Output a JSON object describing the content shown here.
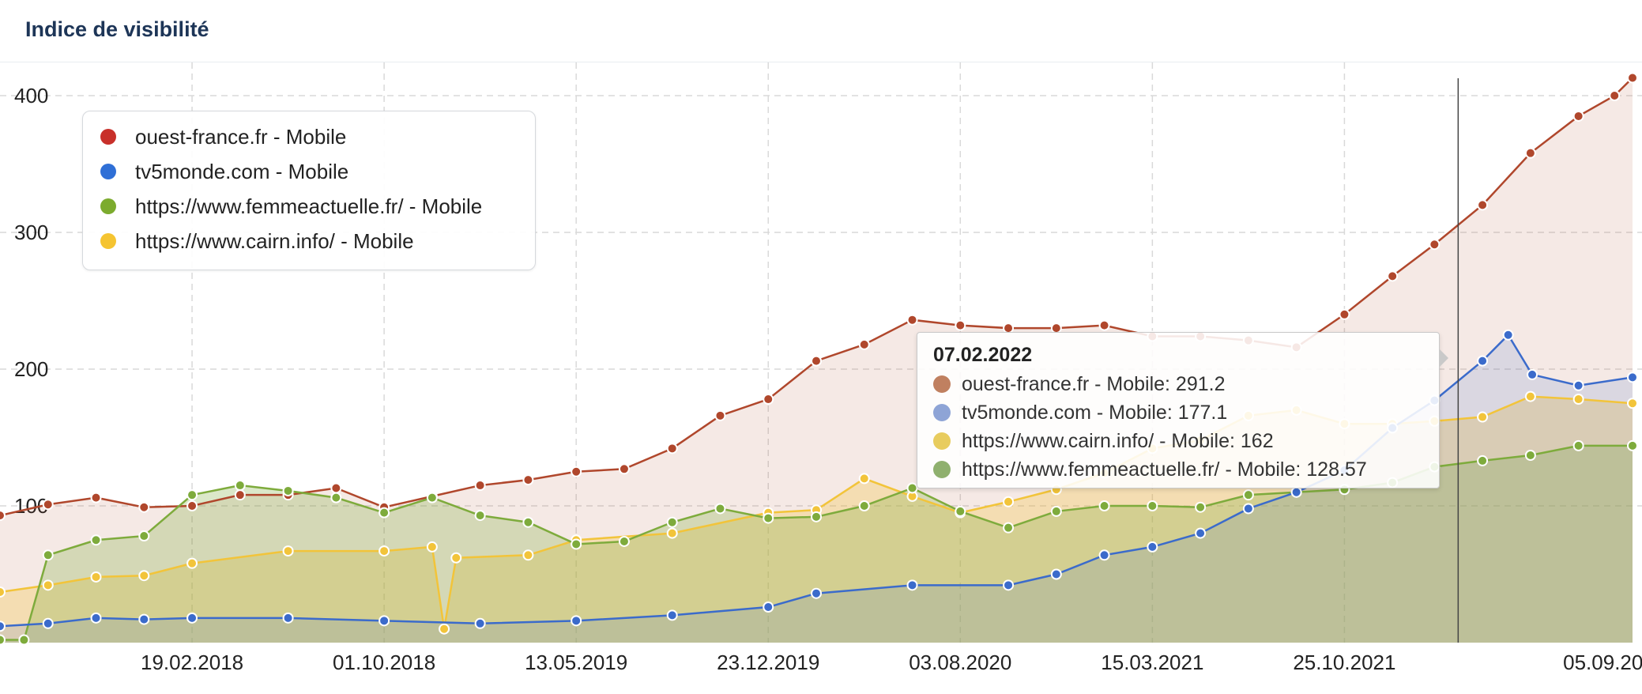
{
  "header": {
    "title": "Indice de visibilité"
  },
  "chart_data": {
    "type": "area",
    "ylim": [
      0,
      415
    ],
    "y_ticks": [
      100,
      200,
      300,
      400
    ],
    "x_tick_labels": [
      "19.02.2018",
      "01.10.2018",
      "13.05.2019",
      "23.12.2019",
      "03.08.2020",
      "15.03.2021",
      "25.10.2021",
      "05.09.2022"
    ],
    "x_start": "2017-07-10",
    "x_end": "2022-09-26",
    "grid": true,
    "legend_position": "top-left",
    "series": [
      {
        "name": "ouest-france.fr - Mobile",
        "color": "#b0472c",
        "values": [
          [
            "2017-07-10",
            93
          ],
          [
            "2017-09-04",
            101
          ],
          [
            "2017-10-30",
            106
          ],
          [
            "2017-12-25",
            99
          ],
          [
            "2018-02-19",
            100
          ],
          [
            "2018-04-16",
            108
          ],
          [
            "2018-06-11",
            108
          ],
          [
            "2018-08-06",
            113
          ],
          [
            "2018-10-01",
            99
          ],
          [
            "2018-11-26",
            107
          ],
          [
            "2019-01-21",
            115
          ],
          [
            "2019-03-18",
            119
          ],
          [
            "2019-05-13",
            125
          ],
          [
            "2019-07-08",
            127
          ],
          [
            "2019-09-02",
            142
          ],
          [
            "2019-10-28",
            166
          ],
          [
            "2019-12-23",
            178
          ],
          [
            "2020-02-17",
            206
          ],
          [
            "2020-04-13",
            218
          ],
          [
            "2020-06-08",
            236
          ],
          [
            "2020-08-03",
            232
          ],
          [
            "2020-09-28",
            230
          ],
          [
            "2020-11-23",
            230
          ],
          [
            "2021-01-18",
            232
          ],
          [
            "2021-03-15",
            224
          ],
          [
            "2021-05-10",
            224
          ],
          [
            "2021-07-05",
            221
          ],
          [
            "2021-08-30",
            216
          ],
          [
            "2021-10-25",
            240
          ],
          [
            "2021-12-20",
            268
          ],
          [
            "2022-02-07",
            291.2
          ],
          [
            "2022-04-04",
            320
          ],
          [
            "2022-05-30",
            358
          ],
          [
            "2022-07-25",
            385
          ],
          [
            "2022-09-05",
            400
          ],
          [
            "2022-09-26",
            413
          ]
        ]
      },
      {
        "name": "tv5monde.com - Mobile",
        "color": "#3b6bcb",
        "values": [
          [
            "2017-07-10",
            12
          ],
          [
            "2017-09-04",
            14
          ],
          [
            "2017-10-30",
            18
          ],
          [
            "2017-12-25",
            17
          ],
          [
            "2018-02-19",
            18
          ],
          [
            "2018-06-11",
            18
          ],
          [
            "2018-10-01",
            16
          ],
          [
            "2019-01-21",
            14
          ],
          [
            "2019-05-13",
            16
          ],
          [
            "2019-09-02",
            20
          ],
          [
            "2019-12-23",
            26
          ],
          [
            "2020-02-17",
            36
          ],
          [
            "2020-06-08",
            42
          ],
          [
            "2020-09-28",
            42
          ],
          [
            "2020-11-23",
            50
          ],
          [
            "2021-01-18",
            64
          ],
          [
            "2021-03-15",
            70
          ],
          [
            "2021-05-10",
            80
          ],
          [
            "2021-07-05",
            98
          ],
          [
            "2021-08-30",
            110
          ],
          [
            "2021-10-25",
            126
          ],
          [
            "2021-12-20",
            157
          ],
          [
            "2022-02-07",
            177.1
          ],
          [
            "2022-04-04",
            206
          ],
          [
            "2022-05-04",
            225
          ],
          [
            "2022-06-01",
            196
          ],
          [
            "2022-07-25",
            188
          ],
          [
            "2022-09-26",
            194
          ]
        ]
      },
      {
        "name": "https://www.femmeactuelle.fr/ - Mobile",
        "color": "#7eab3c",
        "values": [
          [
            "2017-07-10",
            2
          ],
          [
            "2017-08-07",
            2
          ],
          [
            "2017-09-04",
            64
          ],
          [
            "2017-10-30",
            75
          ],
          [
            "2017-12-25",
            78
          ],
          [
            "2018-02-19",
            108
          ],
          [
            "2018-04-16",
            115
          ],
          [
            "2018-06-11",
            111
          ],
          [
            "2018-08-06",
            106
          ],
          [
            "2018-10-01",
            95
          ],
          [
            "2018-11-26",
            106
          ],
          [
            "2019-01-21",
            93
          ],
          [
            "2019-03-18",
            88
          ],
          [
            "2019-05-13",
            72
          ],
          [
            "2019-07-08",
            74
          ],
          [
            "2019-09-02",
            88
          ],
          [
            "2019-10-28",
            98
          ],
          [
            "2019-12-23",
            91
          ],
          [
            "2020-02-17",
            92
          ],
          [
            "2020-04-13",
            100
          ],
          [
            "2020-06-08",
            113
          ],
          [
            "2020-08-03",
            96
          ],
          [
            "2020-09-28",
            84
          ],
          [
            "2020-11-23",
            96
          ],
          [
            "2021-01-18",
            100
          ],
          [
            "2021-03-15",
            100
          ],
          [
            "2021-05-10",
            99
          ],
          [
            "2021-07-05",
            108
          ],
          [
            "2021-08-30",
            110
          ],
          [
            "2021-10-25",
            112
          ],
          [
            "2021-12-20",
            117
          ],
          [
            "2022-02-07",
            128.57
          ],
          [
            "2022-04-04",
            133
          ],
          [
            "2022-05-30",
            137
          ],
          [
            "2022-07-25",
            144
          ],
          [
            "2022-09-26",
            144
          ]
        ]
      },
      {
        "name": "https://www.cairn.info/ - Mobile",
        "color": "#f2c43a",
        "values": [
          [
            "2017-07-10",
            37
          ],
          [
            "2017-09-04",
            42
          ],
          [
            "2017-10-30",
            48
          ],
          [
            "2017-12-25",
            49
          ],
          [
            "2018-02-19",
            58
          ],
          [
            "2018-06-11",
            67
          ],
          [
            "2018-10-01",
            67
          ],
          [
            "2018-11-26",
            70
          ],
          [
            "2018-12-10",
            10
          ],
          [
            "2018-12-24",
            62
          ],
          [
            "2019-03-18",
            64
          ],
          [
            "2019-05-13",
            75
          ],
          [
            "2019-09-02",
            80
          ],
          [
            "2019-12-23",
            95
          ],
          [
            "2020-02-17",
            97
          ],
          [
            "2020-04-13",
            120
          ],
          [
            "2020-06-08",
            107
          ],
          [
            "2020-08-03",
            95
          ],
          [
            "2020-09-28",
            103
          ],
          [
            "2020-11-23",
            112
          ],
          [
            "2021-01-18",
            124
          ],
          [
            "2021-03-15",
            142
          ],
          [
            "2021-05-10",
            148
          ],
          [
            "2021-07-05",
            166
          ],
          [
            "2021-08-30",
            170
          ],
          [
            "2021-10-25",
            160
          ],
          [
            "2021-12-20",
            160
          ],
          [
            "2022-02-07",
            162
          ],
          [
            "2022-04-04",
            165
          ],
          [
            "2022-05-30",
            180
          ],
          [
            "2022-07-25",
            178
          ],
          [
            "2022-09-26",
            175
          ]
        ]
      }
    ],
    "tooltip": {
      "date": "07.02.2022",
      "rows": [
        {
          "label": "ouest-france.fr - Mobile: 291.2",
          "color": "#c08060"
        },
        {
          "label": "tv5monde.com - Mobile: 177.1",
          "color": "#8ea4d6"
        },
        {
          "label": "https://www.cairn.info/ - Mobile: 162",
          "color": "#e8cc5e"
        },
        {
          "label": "https://www.femmeactuelle.fr/ - Mobile: 128.57",
          "color": "#8fb06e"
        }
      ]
    }
  }
}
